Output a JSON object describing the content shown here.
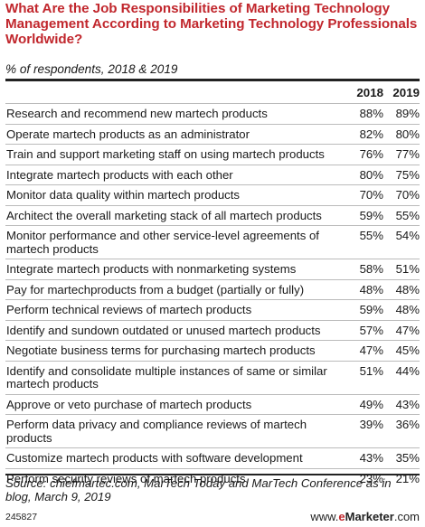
{
  "header": {
    "title": "What Are the Job Responsibilities of Marketing Technology Management According to Marketing Technology Professionals Worldwide?",
    "subtitle": "% of respondents, 2018 & 2019"
  },
  "chart_data": {
    "type": "table",
    "title": "What Are the Job Responsibilities of Marketing Technology Management According to Marketing Technology Professionals Worldwide?",
    "subtitle": "% of respondents, 2018 & 2019",
    "columns": [
      "",
      "2018",
      "2019"
    ],
    "rows": [
      {
        "label": "Research and recommend new martech products",
        "v2018": "88%",
        "v2019": "89%"
      },
      {
        "label": "Operate martech products as an administrator",
        "v2018": "82%",
        "v2019": "80%"
      },
      {
        "label": "Train and support marketing staff on using martech products",
        "v2018": "76%",
        "v2019": "77%"
      },
      {
        "label": "Integrate martech products with each other",
        "v2018": "80%",
        "v2019": "75%"
      },
      {
        "label": "Monitor data quality within martech products",
        "v2018": "70%",
        "v2019": "70%"
      },
      {
        "label": "Architect the overall marketing stack of all martech products",
        "v2018": "59%",
        "v2019": "55%"
      },
      {
        "label": "Monitor performance and other service-level agreements of martech products",
        "v2018": "55%",
        "v2019": "54%"
      },
      {
        "label": "Integrate martech products with nonmarketing systems",
        "v2018": "58%",
        "v2019": "51%"
      },
      {
        "label": "Pay for martechproducts from a budget (partially or fully)",
        "v2018": "48%",
        "v2019": "48%"
      },
      {
        "label": "Perform technical reviews of martech products",
        "v2018": "59%",
        "v2019": "48%"
      },
      {
        "label": "Identify and sundown outdated or unused martech products",
        "v2018": "57%",
        "v2019": "47%"
      },
      {
        "label": "Negotiate business terms for purchasing martech products",
        "v2018": "47%",
        "v2019": "45%"
      },
      {
        "label": "Identify and consolidate multiple instances of same or similar martech products",
        "v2018": "51%",
        "v2019": "44%"
      },
      {
        "label": "Approve or veto purchase of martech products",
        "v2018": "49%",
        "v2019": "43%"
      },
      {
        "label": "Perform data privacy and compliance reviews of martech products",
        "v2018": "39%",
        "v2019": "36%"
      },
      {
        "label": "Customize martech products with software development",
        "v2018": "43%",
        "v2019": "35%"
      },
      {
        "label": "Perform security reviews of martech products",
        "v2018": "23%",
        "v2019": "21%"
      }
    ]
  },
  "footer": {
    "source": "Source: chiefmartec.com, MarTech Today and MarTech Conference as in blog, March 9, 2019",
    "chart_id": "245827",
    "brand_prefix": "www.",
    "brand_e": "e",
    "brand_name": "Marketer",
    "brand_suffix": ".com"
  },
  "colors": {
    "title": "#c1272d",
    "text": "#1a1a1a",
    "rule": "#222222",
    "row_divider": "#bbbbbb"
  }
}
